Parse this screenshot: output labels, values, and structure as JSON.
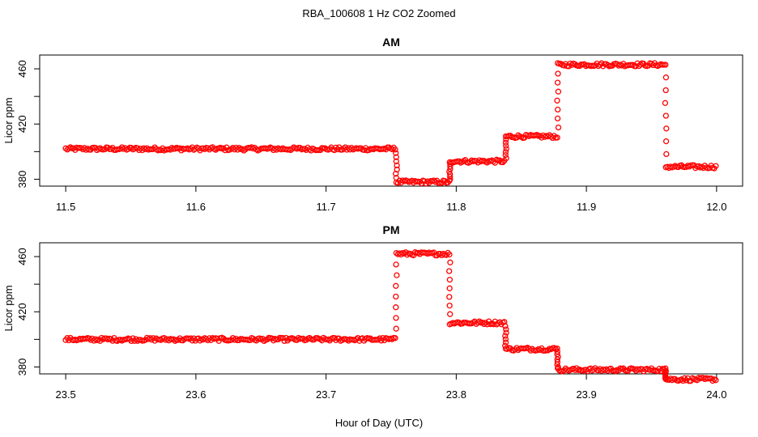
{
  "figure": {
    "title": "RBA_100608  1 Hz CO2 Zoomed",
    "xlabel": "Hour of Day (UTC)"
  },
  "chart_data": [
    {
      "type": "scatter",
      "title": "AM",
      "ylabel": "Licor ppm",
      "xlim": [
        11.5,
        12.0
      ],
      "ylim": [
        375,
        470
      ],
      "xticks": [
        "11.5",
        "11.6",
        "11.7",
        "11.8",
        "11.9",
        "12.0"
      ],
      "yticks": [
        "380",
        "420",
        "460"
      ],
      "marker_color": "#ff0000",
      "segments": [
        {
          "x_start": 11.5,
          "x_end": 11.754,
          "y": 402
        },
        {
          "x_start": 11.754,
          "x_end": 11.795,
          "y": 378
        },
        {
          "x_start": 11.795,
          "x_end": 11.838,
          "y": 393
        },
        {
          "x_start": 11.838,
          "x_end": 11.878,
          "y": 411
        },
        {
          "x_start": 11.878,
          "x_end": 11.961,
          "y": 463
        },
        {
          "x_start": 11.961,
          "x_end": 12.0,
          "y": 389
        }
      ]
    },
    {
      "type": "scatter",
      "title": "PM",
      "ylabel": "Licor ppm",
      "xlim": [
        23.5,
        24.0
      ],
      "ylim": [
        375,
        470
      ],
      "xticks": [
        "23.5",
        "23.6",
        "23.7",
        "23.8",
        "23.9",
        "24.0"
      ],
      "yticks": [
        "380",
        "420",
        "460"
      ],
      "marker_color": "#ff0000",
      "segments": [
        {
          "x_start": 23.5,
          "x_end": 23.754,
          "y": 400
        },
        {
          "x_start": 23.754,
          "x_end": 23.795,
          "y": 462
        },
        {
          "x_start": 23.795,
          "x_end": 23.838,
          "y": 412
        },
        {
          "x_start": 23.838,
          "x_end": 23.878,
          "y": 393
        },
        {
          "x_start": 23.878,
          "x_end": 23.961,
          "y": 378
        },
        {
          "x_start": 23.961,
          "x_end": 24.0,
          "y": 371
        }
      ]
    }
  ]
}
